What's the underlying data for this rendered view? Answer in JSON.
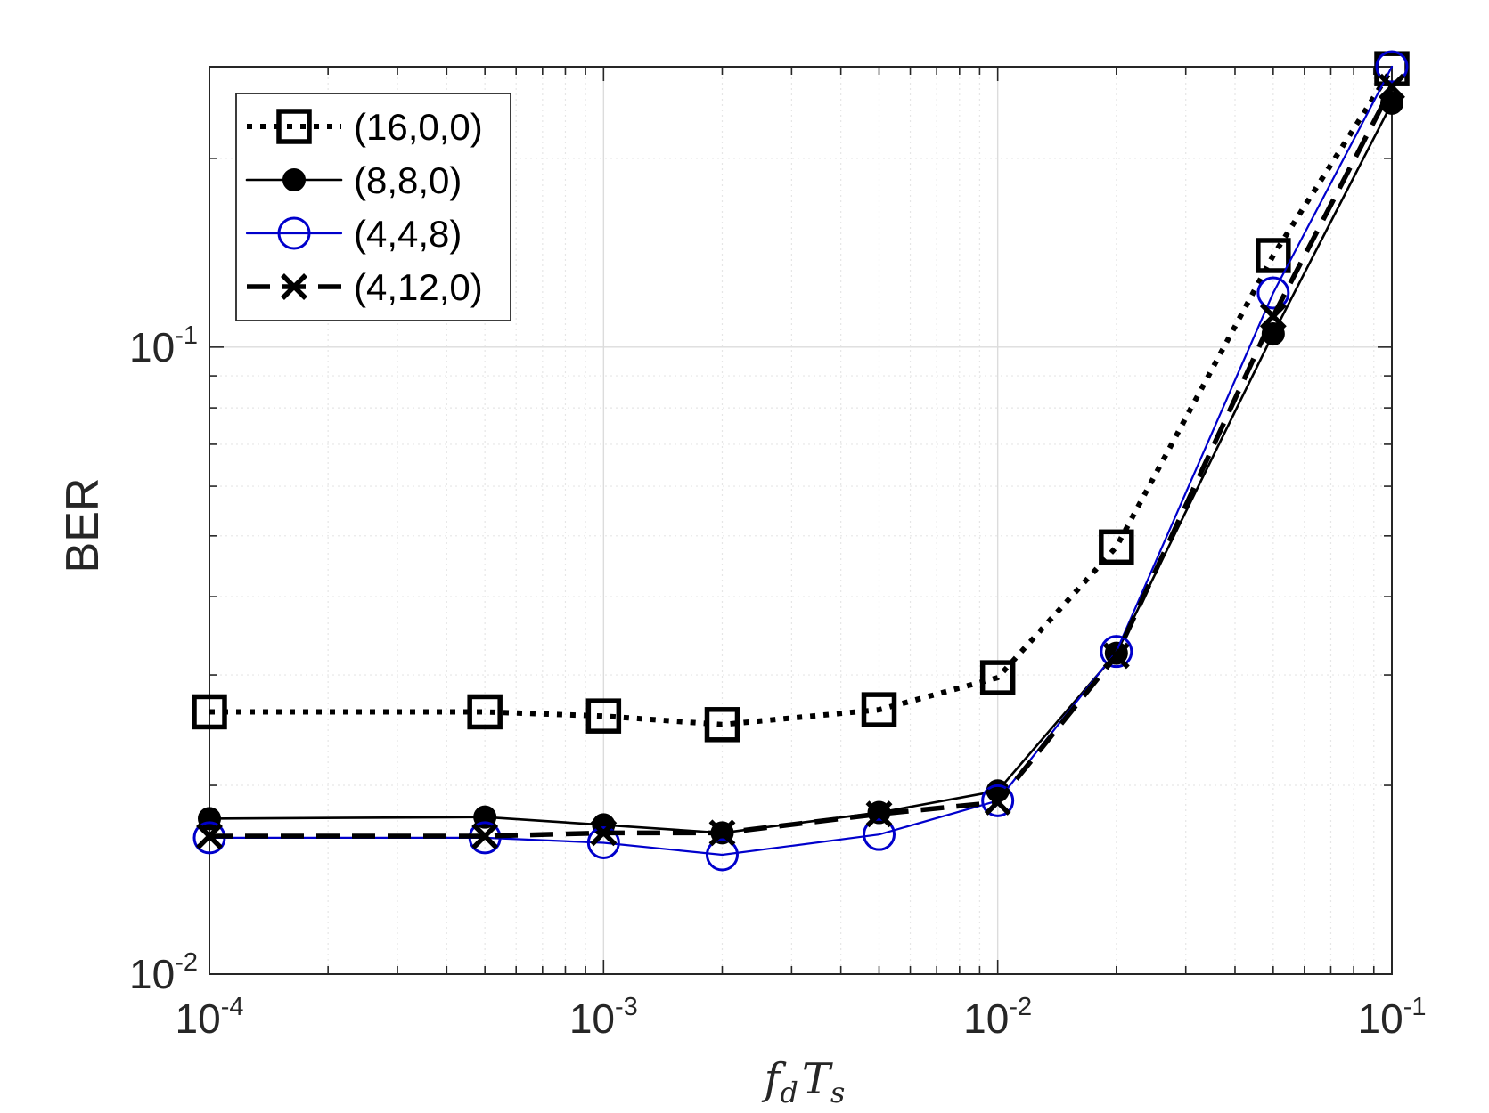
{
  "chart_data": {
    "type": "line",
    "xscale": "log",
    "yscale": "log",
    "xlim": [
      0.0001,
      0.1
    ],
    "ylim": [
      0.01,
      0.28
    ],
    "xlabel": {
      "base": "f",
      "sub1": "d",
      "mid": "T",
      "sub2": "s"
    },
    "ylabel": "BER",
    "grid": true,
    "minor_grid": true,
    "legend_position": "top-left",
    "x_ticks": [
      {
        "base": "10",
        "exp": "-4",
        "value": 0.0001
      },
      {
        "base": "10",
        "exp": "-3",
        "value": 0.001
      },
      {
        "base": "10",
        "exp": "-2",
        "value": 0.01
      },
      {
        "base": "10",
        "exp": "-1",
        "value": 0.1
      }
    ],
    "y_ticks": [
      {
        "base": "10",
        "exp": "-2",
        "value": 0.01
      },
      {
        "base": "10",
        "exp": "-1",
        "value": 0.1
      }
    ],
    "x": [
      0.0001,
      0.0005,
      0.001,
      0.002,
      0.005,
      0.01,
      0.02,
      0.05,
      0.1
    ],
    "series": [
      {
        "name": "(16,0,0)",
        "color": "#000000",
        "line": "dotted",
        "marker": "square",
        "values": [
          0.0262,
          0.0262,
          0.0258,
          0.025,
          0.0264,
          0.0297,
          0.048,
          0.14,
          0.278
        ]
      },
      {
        "name": "(8,8,0)",
        "color": "#000000",
        "line": "solid",
        "marker": "filled-circle",
        "values": [
          0.0177,
          0.0178,
          0.0173,
          0.0168,
          0.0181,
          0.0196,
          0.0325,
          0.105,
          0.245
        ]
      },
      {
        "name": "(4,4,8)",
        "color": "#0000cc",
        "line": "solid",
        "marker": "open-circle",
        "values": [
          0.0165,
          0.0165,
          0.0162,
          0.0155,
          0.0167,
          0.0189,
          0.0327,
          0.122,
          0.28
        ]
      },
      {
        "name": "(4,12,0)",
        "color": "#000000",
        "line": "dashed",
        "marker": "x",
        "values": [
          0.0166,
          0.0166,
          0.0168,
          0.0168,
          0.018,
          0.0188,
          0.0322,
          0.112,
          0.26
        ]
      }
    ]
  }
}
